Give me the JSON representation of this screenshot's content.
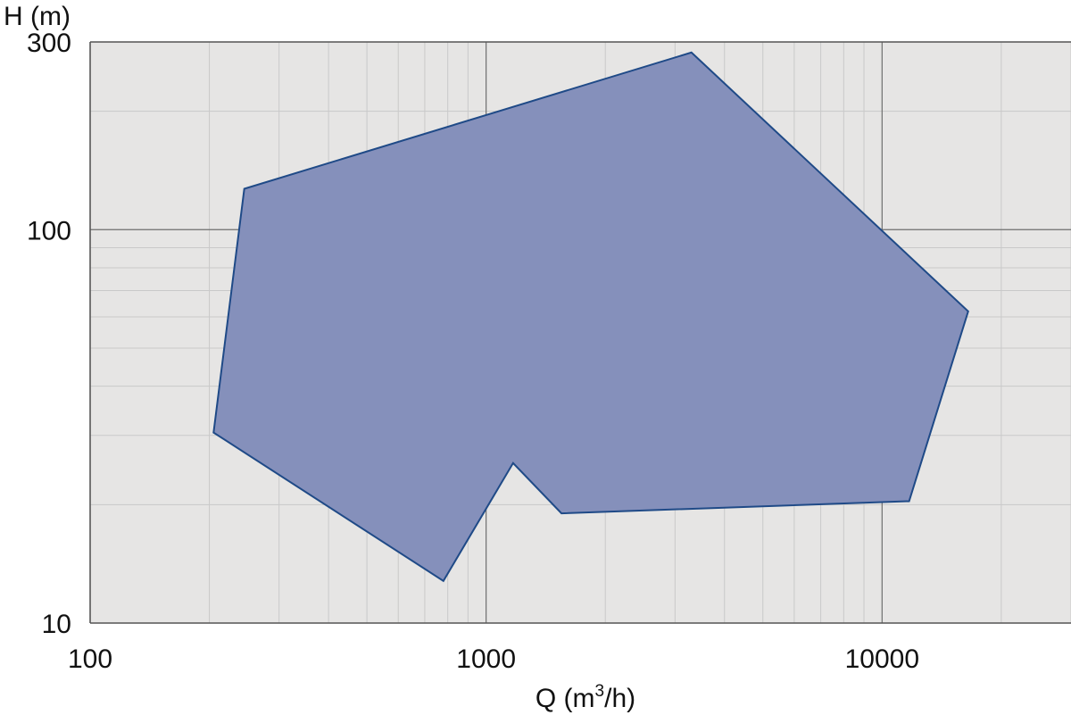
{
  "chart_data": {
    "type": "area",
    "xlabel": "Q (m³/h)",
    "xlabel_parts": {
      "base": "Q (m",
      "sup": "3",
      "tail": "/h)"
    },
    "ylabel": "H (m)",
    "x_scale": "log",
    "y_scale": "log",
    "xlim": [
      100,
      30000
    ],
    "ylim": [
      10,
      300
    ],
    "x_ticks": [
      {
        "value": 100,
        "label": "100"
      },
      {
        "value": 1000,
        "label": "1000"
      },
      {
        "value": 10000,
        "label": "10000"
      }
    ],
    "y_ticks": [
      {
        "value": 300,
        "label": "300"
      },
      {
        "value": 100,
        "label": "100"
      },
      {
        "value": 10,
        "label": "10"
      }
    ],
    "grid": true,
    "legend": "none",
    "region": {
      "points": [
        {
          "x": 245,
          "y": 127
        },
        {
          "x": 3300,
          "y": 282
        },
        {
          "x": 16500,
          "y": 62
        },
        {
          "x": 11700,
          "y": 20.4
        },
        {
          "x": 1550,
          "y": 19
        },
        {
          "x": 1170,
          "y": 25.5
        },
        {
          "x": 780,
          "y": 12.8
        },
        {
          "x": 205,
          "y": 30.5
        }
      ]
    },
    "colors": {
      "plot_background": "#e6e5e4",
      "grid_major": "#6e6e6e",
      "grid_minor": "#c9c9c9",
      "area_fill": "#8590bb",
      "area_stroke": "#1f4a87"
    }
  }
}
